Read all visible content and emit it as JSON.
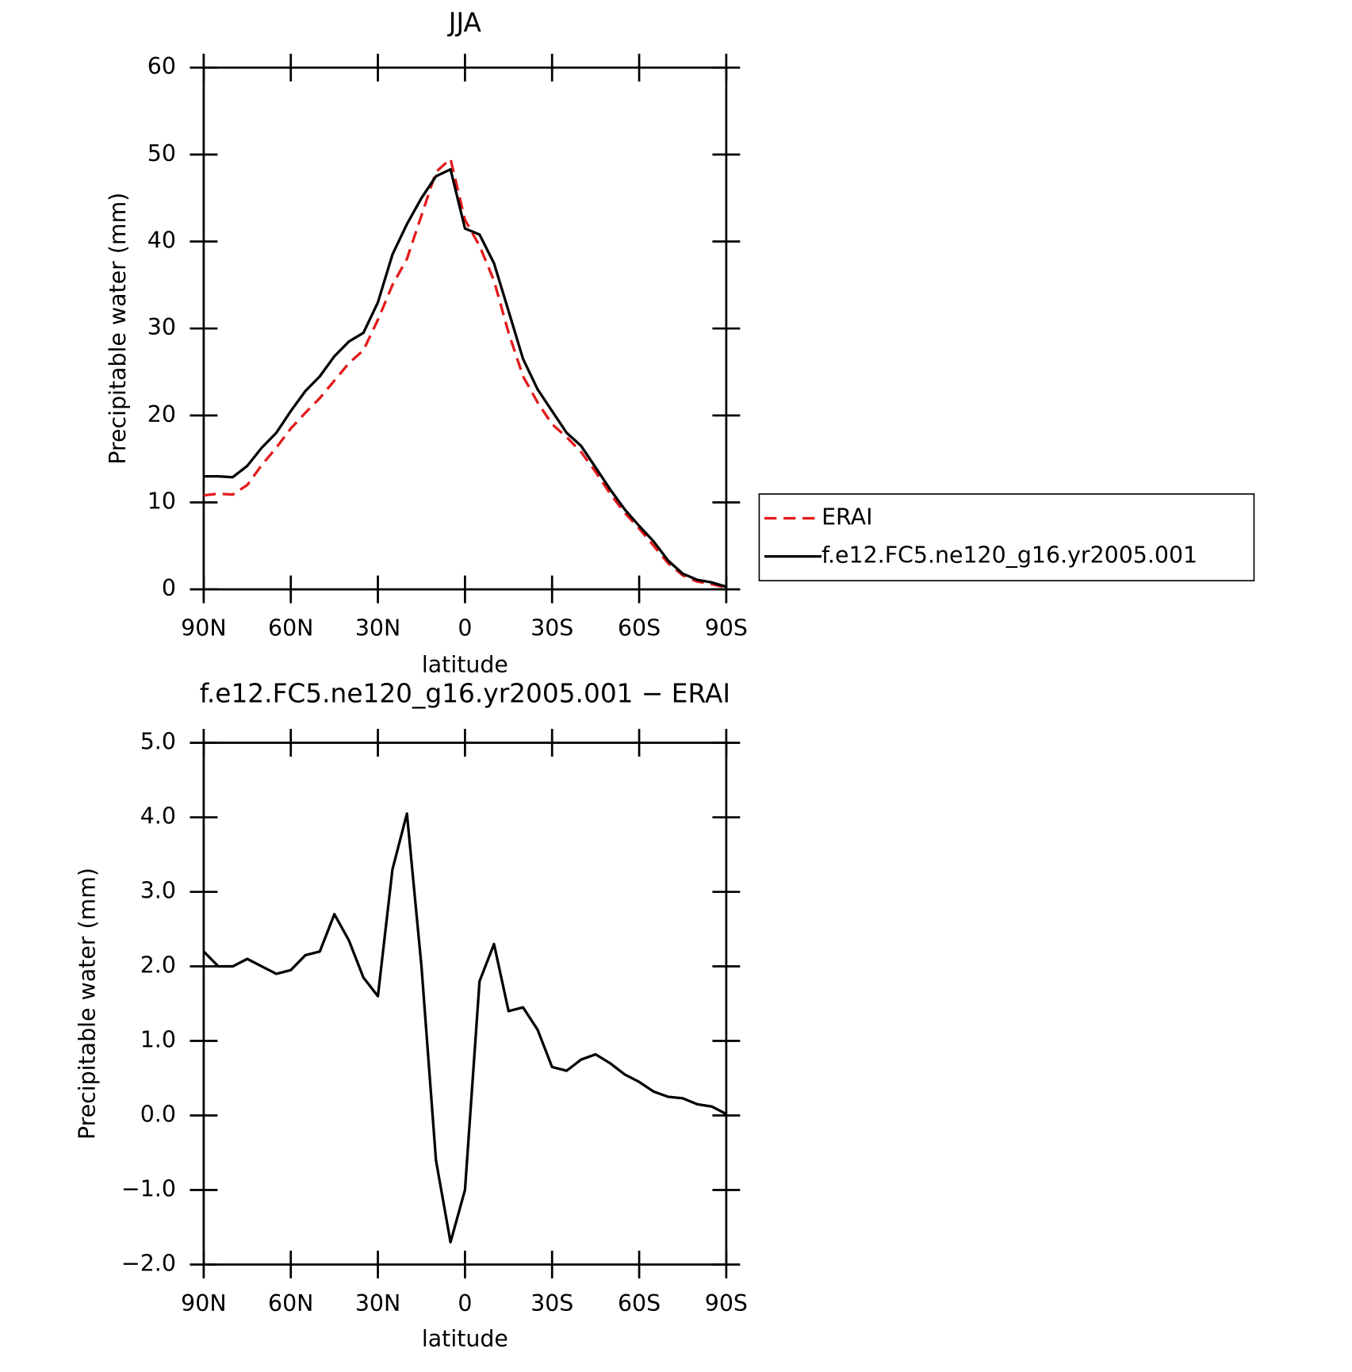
{
  "chart_data": [
    {
      "type": "line",
      "title": "JJA",
      "xlabel": "latitude",
      "ylabel": "Precipitable water (mm)",
      "x": [
        90,
        85,
        80,
        75,
        70,
        65,
        60,
        55,
        50,
        45,
        40,
        35,
        30,
        25,
        20,
        15,
        10,
        5,
        0,
        -5,
        -10,
        -15,
        -20,
        -25,
        -30,
        -35,
        -40,
        -45,
        -50,
        -55,
        -60,
        -65,
        -70,
        -75,
        -80,
        -85,
        -90
      ],
      "xlim": [
        90,
        -90
      ],
      "xticks": [
        {
          "value": 90,
          "label": "90N"
        },
        {
          "value": 60,
          "label": "60N"
        },
        {
          "value": 30,
          "label": "30N"
        },
        0,
        {
          "value": -30,
          "label": "30S"
        },
        {
          "value": -60,
          "label": "60S"
        },
        {
          "value": -90,
          "label": "90S"
        }
      ],
      "ylim": [
        0,
        60
      ],
      "yticks": [
        0,
        10,
        20,
        30,
        40,
        50,
        60
      ],
      "legend": "outside-right",
      "series": [
        {
          "name": "ERAI",
          "color": "#e31a1c",
          "dash": true,
          "values": [
            10.8,
            11.0,
            10.9,
            12.0,
            14.3,
            16.3,
            18.5,
            20.3,
            22.0,
            24.0,
            26.0,
            27.5,
            31.0,
            35.0,
            38.0,
            43.0,
            48.0,
            49.5,
            42.5,
            39.5,
            35.5,
            29.5,
            24.5,
            21.5,
            19.0,
            17.5,
            15.8,
            13.5,
            11.0,
            8.8,
            7.0,
            5.0,
            3.0,
            1.6,
            0.9,
            0.6,
            0.2
          ]
        },
        {
          "name": "f.e12.FC5.ne120_g16.yr2005.001",
          "color": "#000000",
          "dash": false,
          "values": [
            13.0,
            13.0,
            12.9,
            14.2,
            16.3,
            18.0,
            20.5,
            22.8,
            24.5,
            26.8,
            28.5,
            29.5,
            33.0,
            38.5,
            42.0,
            45.0,
            47.5,
            48.3,
            41.5,
            40.8,
            37.5,
            32.0,
            26.5,
            23.0,
            20.5,
            18.0,
            16.5,
            14.0,
            11.5,
            9.2,
            7.3,
            5.5,
            3.3,
            1.8,
            1.1,
            0.8,
            0.3
          ]
        }
      ]
    },
    {
      "type": "line",
      "title": "f.e12.FC5.ne120_g16.yr2005.001 − ERAI",
      "xlabel": "latitude",
      "ylabel": "Precipitable water (mm)",
      "x": [
        90,
        85,
        80,
        75,
        70,
        65,
        60,
        55,
        50,
        45,
        40,
        35,
        30,
        25,
        20,
        15,
        10,
        5,
        0,
        -5,
        -10,
        -15,
        -20,
        -25,
        -30,
        -35,
        -40,
        -45,
        -50,
        -55,
        -60,
        -65,
        -70,
        -75,
        -80,
        -85,
        -90
      ],
      "xlim": [
        90,
        -90
      ],
      "xticks": [
        {
          "value": 90,
          "label": "90N"
        },
        {
          "value": 60,
          "label": "60N"
        },
        {
          "value": 30,
          "label": "30N"
        },
        0,
        {
          "value": -30,
          "label": "30S"
        },
        {
          "value": -60,
          "label": "60S"
        },
        {
          "value": -90,
          "label": "90S"
        }
      ],
      "ylim": [
        -2,
        5
      ],
      "yticks": [
        {
          "value": -2,
          "label": "−2.0"
        },
        {
          "value": -1,
          "label": "−1.0"
        },
        {
          "value": 0,
          "label": "0.0"
        },
        {
          "value": 1,
          "label": "1.0"
        },
        {
          "value": 2,
          "label": "2.0"
        },
        {
          "value": 3,
          "label": "3.0"
        },
        {
          "value": 4,
          "label": "4.0"
        },
        {
          "value": 5,
          "label": "5.0"
        }
      ],
      "series": [
        {
          "color": "#000000",
          "dash": false,
          "values": [
            2.2,
            2.0,
            2.0,
            2.1,
            2.0,
            1.9,
            1.95,
            2.15,
            2.2,
            2.7,
            2.35,
            1.85,
            1.6,
            3.3,
            4.05,
            2.0,
            -0.6,
            -1.7,
            -1.0,
            1.8,
            2.3,
            1.4,
            1.45,
            1.15,
            0.65,
            0.6,
            0.75,
            0.82,
            0.7,
            0.55,
            0.45,
            0.32,
            0.25,
            0.23,
            0.15,
            0.12,
            0.02
          ]
        }
      ]
    }
  ]
}
